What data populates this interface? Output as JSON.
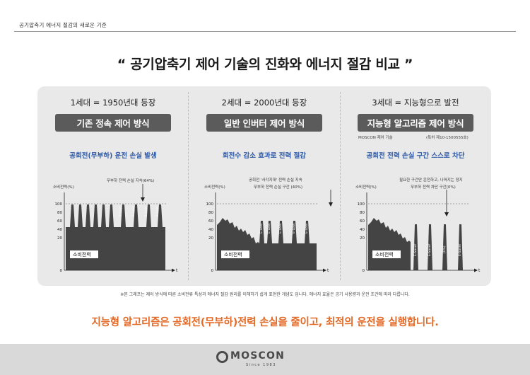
{
  "header": {
    "title": "공기압축기 에너지 절감의 새로운 기준"
  },
  "main_title": "“ 공기압축기 제어 기술의 진화와 에너지 절감 비교 ”",
  "columns": [
    {
      "generation": "1세대 = 1950년대 등장",
      "method": "기존 정속 제어 방식",
      "method_note": "",
      "subtitle": "공회전(무부하) 운전 손실 발생",
      "chart": {
        "y_axis_label": "소비전력(%)",
        "x_axis_label": "t",
        "y_ticks": [
          "100",
          "80",
          "60",
          "40",
          "20",
          "0"
        ],
        "annotation": [
          "무부하 전력 손실 지속(64%)"
        ],
        "area_label": "소비전력",
        "peak_labels": [
          "E-Loss",
          "E-Loss",
          "E-Loss",
          "E-Loss"
        ]
      }
    },
    {
      "generation": "2세대 = 2000년대 등장",
      "method": "일반 인버터 제어 방식",
      "method_note": "",
      "subtitle": "회전수 감소 효과로 전력 절감",
      "chart": {
        "y_axis_label": "소비전력(%)",
        "x_axis_label": "t",
        "y_ticks": [
          "100",
          "80",
          "60",
          "40",
          "20",
          "0"
        ],
        "annotation": [
          "공회전 '사각지대' 전력 손실 지속",
          "무부하 전력 손실 구간 (40%)"
        ],
        "area_label": "소비전력",
        "peak_labels": [
          "E-Loss",
          "E-Loss",
          "E-Loss",
          "E-Loss",
          "E-Loss"
        ]
      }
    },
    {
      "generation": "3세대 = 지능형으로 발전",
      "method": "지능형 알고리즘 제어 방식",
      "method_note": "MOSCON 제어 기술",
      "method_patent": "(특허 제10-1500555호)",
      "subtitle": "공회전 전력 손실 구간 스스로 차단",
      "chart": {
        "y_axis_label": "소비전력(%)",
        "x_axis_label": "t",
        "y_ticks": [
          "100",
          "80",
          "60",
          "40",
          "20",
          "0"
        ],
        "annotation": [
          "필요한 구간만 운전하고, 나머지는 정지",
          "무부하 전력 차단 구간(0%)"
        ],
        "area_label": "소비전력",
        "peak_labels": [
          "E-Saver",
          "E-Saver",
          "(0%)",
          "E-Saver"
        ]
      }
    }
  ],
  "footnote": "※본 그래프는 제어 방식에 따른 소비전류 특성과 에너지 절감 원리를 이해하기 쉽게 표현한 개념도 입니다. 에너지 효율은 공기 사용량과 운전 조건에 따라 다릅니다.",
  "conclusion": "지능형 알고리즘은 공회전(무부하)전력 손실을 줄이고, 최적의 운전을 실행합니다.",
  "footer": {
    "logo_text": "MOSCON",
    "logo_since": "Since 1983"
  },
  "colors": {
    "accent_blue": "#2d58a6",
    "accent_orange": "#e36a26",
    "pill": "#5b5b5b",
    "area": "#444444"
  }
}
